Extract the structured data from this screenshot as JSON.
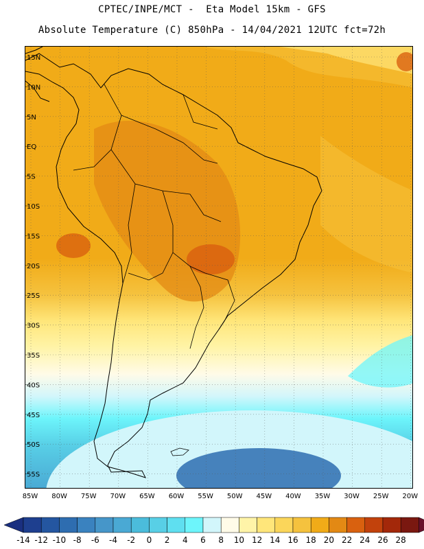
{
  "header": {
    "line1": "CPTEC/INPE/MCT -  Eta Model 15km - GFS",
    "line2": "Absolute Temperature (C) 850hPa - 14/04/2021 12UTC fct=72h"
  },
  "map": {
    "lat_labels": [
      "15N",
      "10N",
      "5N",
      "EQ",
      "5S",
      "10S",
      "15S",
      "20S",
      "25S",
      "30S",
      "35S",
      "40S",
      "45S",
      "50S",
      "55S"
    ],
    "lon_labels": [
      "85W",
      "80W",
      "75W",
      "70W",
      "65W",
      "60W",
      "55W",
      "50W",
      "45W",
      "40W",
      "35W",
      "30W",
      "25W",
      "20W"
    ],
    "grid": true,
    "region": "South America"
  },
  "colorbar": {
    "labels": [
      "-14",
      "-12",
      "-10",
      "-8",
      "-6",
      "-4",
      "-2",
      "0",
      "2",
      "4",
      "6",
      "8",
      "10",
      "12",
      "14",
      "16",
      "18",
      "20",
      "22",
      "24",
      "26",
      "28"
    ],
    "colors": [
      "#1e3f8f",
      "#2456a0",
      "#2e6db0",
      "#3a82bf",
      "#4696c9",
      "#4aa9d4",
      "#4bbcdb",
      "#58cfe6",
      "#5fdff0",
      "#6df5fb",
      "#d2f6fb",
      "#fffbe8",
      "#fff4a8",
      "#ffe67a",
      "#fbd65a",
      "#f5c23e",
      "#f1ab18",
      "#e38914",
      "#d9610f",
      "#c2420c",
      "#a3280a",
      "#7a1810"
    ],
    "low_end_color": "#1a2f80",
    "high_end_color": "#6b0f2a"
  }
}
